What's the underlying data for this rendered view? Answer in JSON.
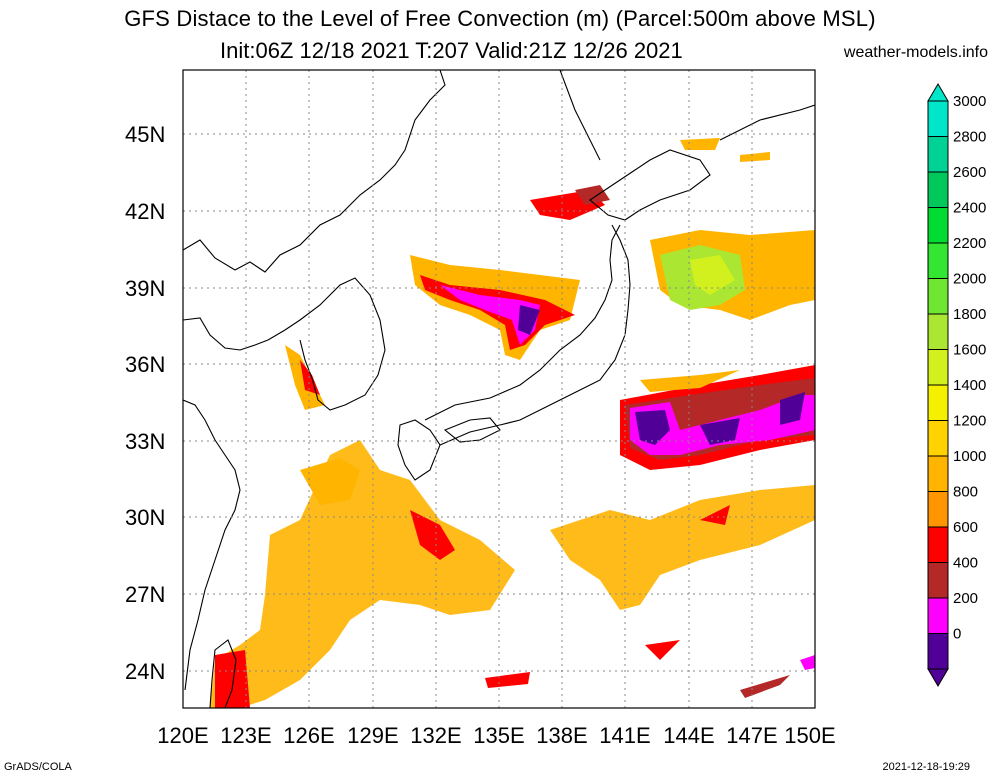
{
  "title": {
    "line1": "GFS Distace to the Level of Free Convection (m) (Parcel:500m above MSL)",
    "line2": "Init:06Z 12/18 2021 T:207 Valid:21Z 12/26 2021",
    "credit": "weather-models.info"
  },
  "footer": {
    "left": "GrADS/COLA",
    "right": "2021-12-18-19:29"
  },
  "axes": {
    "lat_labels": [
      "45N",
      "42N",
      "39N",
      "36N",
      "33N",
      "30N",
      "27N",
      "24N"
    ],
    "lon_labels": [
      "120E",
      "123E",
      "126E",
      "129E",
      "132E",
      "135E",
      "138E",
      "141E",
      "144E",
      "147E",
      "150E"
    ]
  },
  "colorbar": {
    "labels": [
      "3000",
      "2800",
      "2600",
      "2400",
      "2200",
      "2000",
      "1800",
      "1600",
      "1400",
      "1200",
      "1000",
      "800",
      "600",
      "400",
      "200",
      "0"
    ],
    "colors": [
      "#00e6c8",
      "#00d296",
      "#00c85a",
      "#00dc32",
      "#32e632",
      "#6ee632",
      "#aae632",
      "#d2f01e",
      "#f5f000",
      "#ffd200",
      "#ffb400",
      "#ff9600",
      "#ff0000",
      "#b42828",
      "#ff00ff",
      "#500096"
    ]
  }
}
